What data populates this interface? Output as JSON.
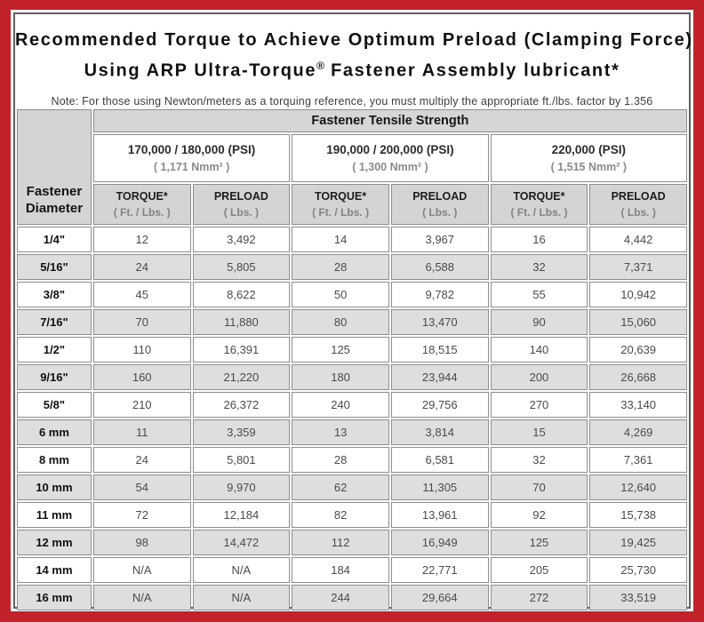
{
  "frame": {
    "border_color": "#c2222a"
  },
  "title": {
    "line1": "Recommended Torque to Achieve Optimum Preload (Clamping Force)",
    "line2_a": "Using ARP Ultra-Torque",
    "line2_sup": "®",
    "line2_b": " Fastener Assembly lubricant*"
  },
  "note": "Note: For those using Newton/meters as a torquing reference, you must multiply the appropriate ft./lbs. factor by 1.356",
  "table": {
    "corner_line1": "Fastener",
    "corner_line2": "Diameter",
    "tensile_header": "Fastener Tensile Strength",
    "strength_groups": [
      {
        "psi": "170,000 / 180,000 (PSI)",
        "nmm": "( 1,171 Nmm² )"
      },
      {
        "psi": "190,000 / 200,000 (PSI)",
        "nmm": "( 1,300 Nmm² )"
      },
      {
        "psi": "220,000 (PSI)",
        "nmm": "( 1,515 Nmm² )"
      }
    ],
    "col_headers": {
      "torque_label": "TORQUE*",
      "torque_sub": "( Ft. / Lbs. )",
      "preload_label": "PRELOAD",
      "preload_sub": "( Lbs. )"
    },
    "rows": [
      {
        "diameter": "1/4\"",
        "values": [
          "12",
          "3,492",
          "14",
          "3,967",
          "16",
          "4,442"
        ]
      },
      {
        "diameter": "5/16\"",
        "values": [
          "24",
          "5,805",
          "28",
          "6,588",
          "32",
          "7,371"
        ]
      },
      {
        "diameter": "3/8\"",
        "values": [
          "45",
          "8,622",
          "50",
          "9,782",
          "55",
          "10,942"
        ]
      },
      {
        "diameter": "7/16\"",
        "values": [
          "70",
          "11,880",
          "80",
          "13,470",
          "90",
          "15,060"
        ]
      },
      {
        "diameter": "1/2\"",
        "values": [
          "110",
          "16,391",
          "125",
          "18,515",
          "140",
          "20,639"
        ]
      },
      {
        "diameter": "9/16\"",
        "values": [
          "160",
          "21,220",
          "180",
          "23,944",
          "200",
          "26,668"
        ]
      },
      {
        "diameter": "5/8\"",
        "values": [
          "210",
          "26,372",
          "240",
          "29,756",
          "270",
          "33,140"
        ]
      },
      {
        "diameter": "6 mm",
        "values": [
          "11",
          "3,359",
          "13",
          "3,814",
          "15",
          "4,269"
        ]
      },
      {
        "diameter": "8 mm",
        "values": [
          "24",
          "5,801",
          "28",
          "6,581",
          "32",
          "7,361"
        ]
      },
      {
        "diameter": "10 mm",
        "values": [
          "54",
          "9,970",
          "62",
          "11,305",
          "70",
          "12,640"
        ]
      },
      {
        "diameter": "11 mm",
        "values": [
          "72",
          "12,184",
          "82",
          "13,961",
          "92",
          "15,738"
        ]
      },
      {
        "diameter": "12 mm",
        "values": [
          "98",
          "14,472",
          "112",
          "16,949",
          "125",
          "19,425"
        ]
      },
      {
        "diameter": "14 mm",
        "values": [
          "N/A",
          "N/A",
          "184",
          "22,771",
          "205",
          "25,730"
        ]
      },
      {
        "diameter": "16 mm",
        "values": [
          "N/A",
          "N/A",
          "244",
          "29,664",
          "272",
          "33,519"
        ]
      }
    ]
  }
}
